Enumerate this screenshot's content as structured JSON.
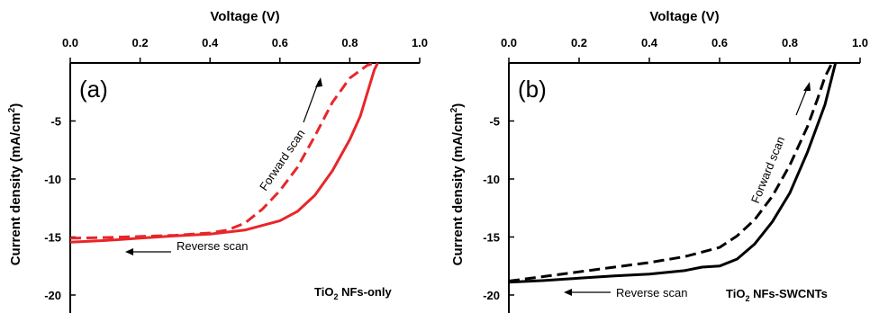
{
  "chart_data": [
    {
      "type": "line",
      "panel_label": "(a)",
      "xlabel": "Voltage (V)",
      "ylabel_main": "Current density (mA/cm",
      "ylabel_sup": "2",
      "ylabel_close": ")",
      "xlim": [
        0,
        1.0
      ],
      "ylim": [
        -21,
        0
      ],
      "xticks": [
        "0.0",
        "0.2",
        "0.4",
        "0.6",
        "0.8",
        "1.0"
      ],
      "yticks": [
        "-5",
        "-10",
        "-15",
        "-20"
      ],
      "sample_prefix": "TiO",
      "sample_sub": "2",
      "sample_suffix": " NFs-only",
      "annotation_forward": "Forward scan",
      "annotation_reverse": "Reverse scan",
      "color": "#e8262a",
      "series": [
        {
          "style": "dashed",
          "points": [
            [
              0.0,
              -15.1
            ],
            [
              0.1,
              -15.05
            ],
            [
              0.2,
              -14.95
            ],
            [
              0.3,
              -14.85
            ],
            [
              0.4,
              -14.65
            ],
            [
              0.45,
              -14.4
            ],
            [
              0.5,
              -13.8
            ],
            [
              0.55,
              -12.6
            ],
            [
              0.6,
              -11.0
            ],
            [
              0.65,
              -9.0
            ],
            [
              0.7,
              -6.3
            ],
            [
              0.75,
              -3.4
            ],
            [
              0.8,
              -1.3
            ],
            [
              0.85,
              -0.2
            ],
            [
              0.87,
              0.0
            ]
          ]
        },
        {
          "style": "solid",
          "points": [
            [
              0.0,
              -15.45
            ],
            [
              0.1,
              -15.3
            ],
            [
              0.2,
              -15.1
            ],
            [
              0.3,
              -14.9
            ],
            [
              0.4,
              -14.75
            ],
            [
              0.5,
              -14.4
            ],
            [
              0.6,
              -13.6
            ],
            [
              0.65,
              -12.8
            ],
            [
              0.7,
              -11.4
            ],
            [
              0.75,
              -9.3
            ],
            [
              0.8,
              -6.6
            ],
            [
              0.83,
              -4.6
            ],
            [
              0.85,
              -2.6
            ],
            [
              0.87,
              -0.6
            ],
            [
              0.88,
              0.0
            ]
          ]
        }
      ]
    },
    {
      "type": "line",
      "panel_label": "(b)",
      "xlabel": "Voltage (V)",
      "ylabel_main": "Current density (mA/cm",
      "ylabel_sup": "2",
      "ylabel_close": ")",
      "xlim": [
        0,
        1.0
      ],
      "ylim": [
        -21,
        0
      ],
      "xticks": [
        "0.0",
        "0.2",
        "0.4",
        "0.6",
        "0.8",
        "1.0"
      ],
      "yticks": [
        "-5",
        "-10",
        "-15",
        "-20"
      ],
      "sample_prefix": "TiO",
      "sample_sub": "2",
      "sample_suffix": " NFs-SWCNTs",
      "annotation_forward": "Forward scan",
      "annotation_reverse": "Reverse scan",
      "color": "#000000",
      "series": [
        {
          "style": "dashed",
          "points": [
            [
              0.0,
              -18.8
            ],
            [
              0.1,
              -18.4
            ],
            [
              0.2,
              -18.0
            ],
            [
              0.3,
              -17.6
            ],
            [
              0.4,
              -17.2
            ],
            [
              0.5,
              -16.7
            ],
            [
              0.6,
              -15.9
            ],
            [
              0.65,
              -14.9
            ],
            [
              0.7,
              -13.5
            ],
            [
              0.75,
              -11.5
            ],
            [
              0.8,
              -8.8
            ],
            [
              0.85,
              -5.5
            ],
            [
              0.88,
              -3.0
            ],
            [
              0.9,
              -1.2
            ],
            [
              0.92,
              0.0
            ]
          ]
        },
        {
          "style": "solid",
          "points": [
            [
              0.0,
              -18.9
            ],
            [
              0.1,
              -18.75
            ],
            [
              0.2,
              -18.55
            ],
            [
              0.3,
              -18.35
            ],
            [
              0.4,
              -18.2
            ],
            [
              0.5,
              -17.9
            ],
            [
              0.55,
              -17.6
            ],
            [
              0.6,
              -17.5
            ],
            [
              0.65,
              -16.9
            ],
            [
              0.7,
              -15.6
            ],
            [
              0.75,
              -13.7
            ],
            [
              0.8,
              -11.2
            ],
            [
              0.85,
              -7.7
            ],
            [
              0.9,
              -3.6
            ],
            [
              0.93,
              0.0
            ]
          ]
        }
      ]
    }
  ]
}
